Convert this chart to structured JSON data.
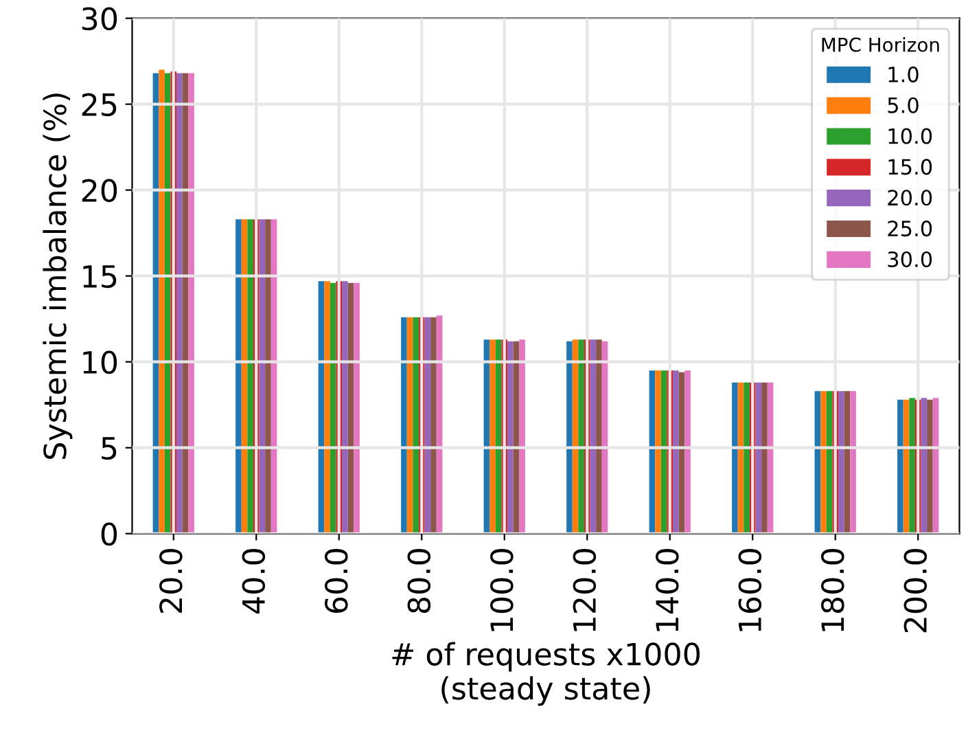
{
  "chart_data": {
    "type": "bar",
    "xlabel": "# of requests x1000\n(steady state)",
    "ylabel": "Systemic imbalance (%)",
    "legend_title": "MPC Horizon",
    "legend": "top right",
    "grid": true,
    "categories": [
      "20.0",
      "40.0",
      "60.0",
      "80.0",
      "100.0",
      "120.0",
      "140.0",
      "160.0",
      "180.0",
      "200.0"
    ],
    "ylim": [
      0,
      30
    ],
    "yticks": [
      0,
      5,
      10,
      15,
      20,
      25,
      30
    ],
    "series": [
      {
        "name": "1.0",
        "color": "#1f77b4",
        "values": [
          26.8,
          18.3,
          14.7,
          12.6,
          11.3,
          11.2,
          9.5,
          8.8,
          8.3,
          7.8
        ]
      },
      {
        "name": "5.0",
        "color": "#ff7f0e",
        "values": [
          27.0,
          18.3,
          14.7,
          12.6,
          11.3,
          11.3,
          9.5,
          8.8,
          8.3,
          7.8
        ]
      },
      {
        "name": "10.0",
        "color": "#2ca02c",
        "values": [
          26.8,
          18.3,
          14.6,
          12.6,
          11.3,
          11.3,
          9.5,
          8.8,
          8.3,
          7.9
        ]
      },
      {
        "name": "15.0",
        "color": "#d62728",
        "values": [
          26.9,
          18.3,
          14.7,
          12.6,
          11.3,
          11.3,
          9.5,
          8.8,
          8.3,
          7.8
        ]
      },
      {
        "name": "20.0",
        "color": "#9467bd",
        "values": [
          26.8,
          18.3,
          14.7,
          12.6,
          11.2,
          11.3,
          9.5,
          8.8,
          8.3,
          7.9
        ]
      },
      {
        "name": "25.0",
        "color": "#8c564b",
        "values": [
          26.8,
          18.3,
          14.6,
          12.6,
          11.2,
          11.3,
          9.4,
          8.8,
          8.3,
          7.8
        ]
      },
      {
        "name": "30.0",
        "color": "#e377c2",
        "values": [
          26.8,
          18.3,
          14.6,
          12.7,
          11.3,
          11.2,
          9.5,
          8.8,
          8.3,
          7.9
        ]
      }
    ]
  }
}
